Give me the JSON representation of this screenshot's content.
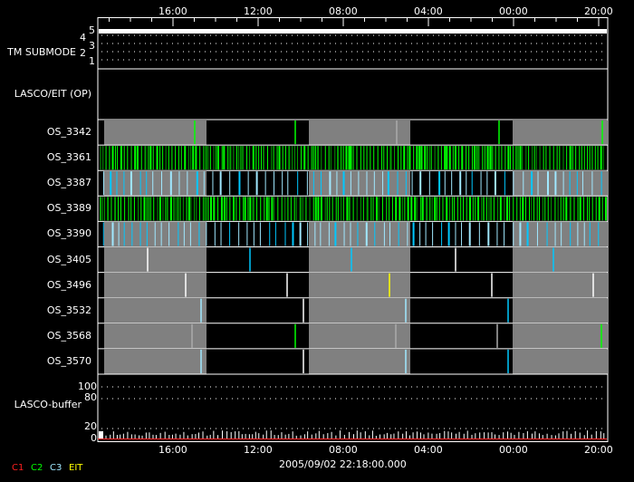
{
  "chart_data": {
    "type": "timeline",
    "time_ticks": [
      "16:00",
      "12:00",
      "08:00",
      "04:00",
      "00:00",
      "20:00"
    ],
    "date_label": "2005/09/02 22:18:00.000",
    "submode_panel": {
      "label": "TM SUBMODE",
      "ticks": [
        "5",
        "4",
        "3",
        "2",
        "1"
      ]
    },
    "op_panel": {
      "label": "LASCO/EIT (OP)"
    },
    "rows": [
      "OS_3342",
      "OS_3361",
      "OS_3387",
      "OS_3389",
      "OS_3390",
      "OS_3405",
      "OS_3496",
      "OS_3532",
      "OS_3568",
      "OS_3570"
    ],
    "buffer_panel": {
      "label": "LASCO-buffer",
      "ticks": [
        "100",
        "80",
        "20",
        "0"
      ]
    },
    "legend": [
      {
        "name": "C1",
        "color": "#ff2020"
      },
      {
        "name": "C2",
        "color": "#00ff00"
      },
      {
        "name": "C3",
        "color": "#a0e8ff"
      },
      {
        "name": "EIT",
        "color": "#ffff00"
      }
    ],
    "colors": {
      "band": "#808080",
      "c3_bright": "#00c8ff"
    }
  }
}
